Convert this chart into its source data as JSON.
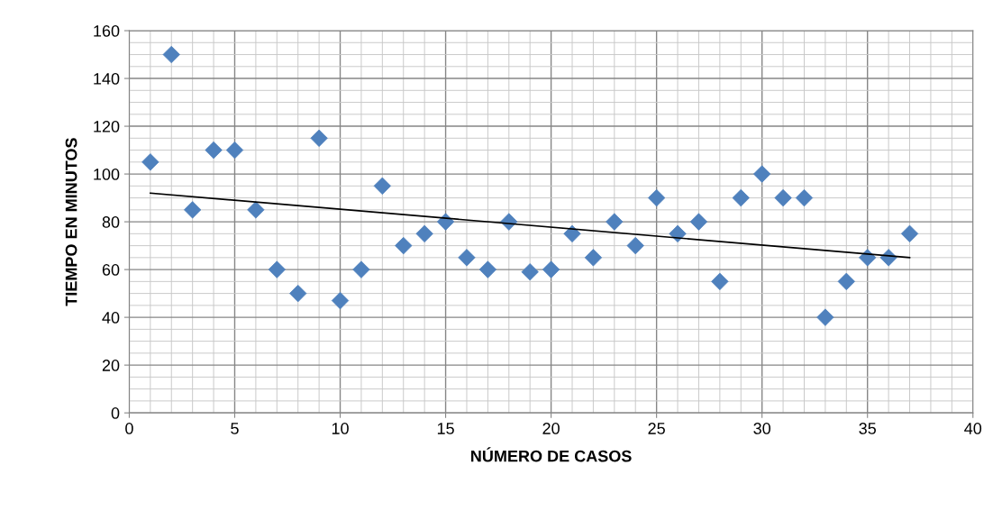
{
  "chart_data": {
    "type": "scatter",
    "xlabel": "NÚMERO DE CASOS",
    "ylabel": "TIEMPO EN MINUTOS",
    "marker": "diamond",
    "grid": true,
    "legend": false,
    "xlim": [
      0,
      40
    ],
    "xticks": [
      0,
      5,
      10,
      15,
      20,
      25,
      30,
      35,
      40
    ],
    "ylim": [
      0,
      160
    ],
    "yticks": [
      0,
      20,
      40,
      60,
      80,
      100,
      120,
      140,
      160
    ],
    "series": [
      {
        "color": "#4f81bd",
        "x": [
          1,
          2,
          3,
          4,
          5,
          6,
          7,
          8,
          9,
          10,
          11,
          12,
          13,
          14,
          15,
          16,
          17,
          18,
          19,
          20,
          21,
          22,
          23,
          24,
          25,
          26,
          27,
          28,
          29,
          30,
          31,
          32,
          33,
          34,
          35,
          36,
          37
        ],
        "values": [
          105,
          150,
          85,
          110,
          110,
          85,
          60,
          50,
          115,
          47,
          60,
          95,
          70,
          75,
          80,
          65,
          60,
          80,
          59,
          60,
          75,
          65,
          80,
          70,
          90,
          75,
          80,
          55,
          90,
          100,
          90,
          90,
          40,
          55,
          65,
          65,
          75
        ]
      },
      {
        "type": "line",
        "color": "#000000",
        "x": [
          1,
          37
        ],
        "values": [
          92,
          65
        ],
        "marker": "none",
        "line_style": "solid"
      }
    ]
  }
}
